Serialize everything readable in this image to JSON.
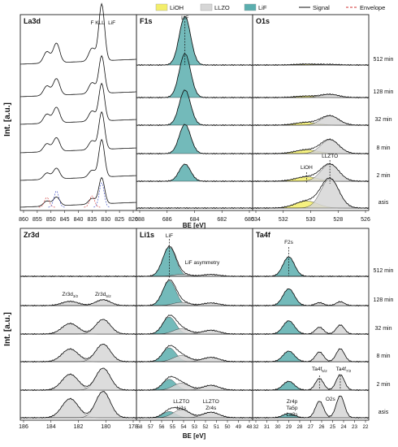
{
  "legend": [
    {
      "label": "LiOH",
      "kind": "fill",
      "color": "#f3ee6a"
    },
    {
      "label": "LLZO",
      "kind": "fill",
      "color": "#d6d6d6"
    },
    {
      "label": "LiF",
      "kind": "fill",
      "color": "#5aaeae"
    },
    {
      "label": "Signal",
      "kind": "line",
      "color": "#111111"
    },
    {
      "label": "Envelope",
      "kind": "dashed",
      "color": "#d03030"
    }
  ],
  "y_label": "Int. [a.u.]",
  "x_label": "BE [eV]",
  "conditions": [
    "512 min",
    "128 min",
    "32 min",
    "8 min",
    "2 min",
    "asis"
  ],
  "colors": {
    "LiOH": "#f3ee6a",
    "LLZO": "#d6d6d6",
    "LiF": "#5aaeae",
    "signal": "#111111",
    "envelope": "#d03030"
  },
  "chart_data": [
    {
      "type": "line",
      "title": "La3d",
      "x_range": [
        860,
        820
      ],
      "x_ticks": [
        "860",
        "855",
        "850",
        "845",
        "840",
        "835",
        "830",
        "825",
        "820"
      ],
      "peaks_eV": [
        851.5,
        848,
        835,
        831.5
      ],
      "annotations": [
        {
          "text": "F KLL",
          "x": 833
        },
        {
          "text": "LiF",
          "x": 829
        }
      ]
    },
    {
      "type": "area",
      "title": "F1s",
      "x_range": [
        688,
        680
      ],
      "x_ticks": [
        "688",
        "686",
        "684",
        "682",
        "680"
      ],
      "component": "LiF",
      "peak_eV": 684.7,
      "relative_intensity": {
        "512 min": 1.0,
        "128 min": 0.9,
        "32 min": 0.72,
        "8 min": 0.6,
        "2 min": 0.35,
        "asis": 0.0
      },
      "annotations": [
        {
          "text": "LiF",
          "x": 684.8
        }
      ]
    },
    {
      "type": "area",
      "title": "O1s",
      "x_range": [
        534,
        526
      ],
      "x_ticks": [
        "534",
        "532",
        "530",
        "528",
        "526"
      ],
      "components": [
        {
          "name": "LLZTO",
          "peak_eV": 528.6
        },
        {
          "name": "LiOH",
          "peak_eV": 530.3
        }
      ],
      "relative_intensity": {
        "512 min": 0.02,
        "128 min": 0.1,
        "32 min": 0.3,
        "8 min": 0.45,
        "2 min": 0.55,
        "asis": 0.95
      },
      "annotations": [
        {
          "text": "LiOH",
          "x": 530.3
        },
        {
          "text": "LLZTO",
          "x": 528.6
        }
      ]
    },
    {
      "type": "area",
      "title": "Zr3d",
      "x_range": [
        186,
        178
      ],
      "x_ticks": [
        "186",
        "184",
        "182",
        "180",
        "178"
      ],
      "components": [
        {
          "name": "Zr3d5/2",
          "peak_eV": 180.2
        },
        {
          "name": "Zr3d3/2",
          "peak_eV": 182.6
        }
      ],
      "relative_intensity": {
        "512 min": 0.0,
        "128 min": 0.2,
        "32 min": 0.5,
        "8 min": 0.6,
        "2 min": 0.75,
        "asis": 0.9
      },
      "annotations": [
        {
          "text": "Zr3d",
          "sub": "3/2",
          "x": 182.6
        },
        {
          "text": "Zr3d",
          "sub": "5/2",
          "x": 180.2
        }
      ]
    },
    {
      "type": "area",
      "title": "Li1s",
      "x_range": [
        58,
        48
      ],
      "x_ticks": [
        "58",
        "57",
        "56",
        "55",
        "54",
        "53",
        "52",
        "51",
        "50",
        "49",
        "48"
      ],
      "components": [
        {
          "name": "LiF",
          "peak_eV": 55.3
        },
        {
          "name": "LLZTO Li1s",
          "peak_eV": 54.2
        },
        {
          "name": "LLZTO Zr4s",
          "peak_eV": 51.5
        }
      ],
      "relative_intensity": {
        "512 min": 0.95,
        "128 min": 0.8,
        "32 min": 0.55,
        "8 min": 0.45,
        "2 min": 0.35,
        "asis": 0.2
      },
      "annotations": [
        {
          "text": "LiF",
          "x": 55.3
        },
        {
          "text": "LiF asymmetry",
          "x": 53.3
        },
        {
          "text": "LLZTO",
          "x": 54.2
        },
        {
          "text": "Li1s",
          "x": 54.2
        },
        {
          "text": "LLZTO",
          "x": 51.5
        },
        {
          "text": "Zr4s",
          "x": 51.5
        }
      ]
    },
    {
      "type": "area",
      "title": "Ta4f",
      "x_range": [
        32,
        22
      ],
      "x_ticks": [
        "32",
        "31",
        "30",
        "29",
        "28",
        "27",
        "26",
        "25",
        "24",
        "23",
        "22"
      ],
      "components": [
        {
          "name": "F2s",
          "peak_eV": 29
        },
        {
          "name": "Ta4f5/2",
          "peak_eV": 26.2
        },
        {
          "name": "Ta4f7/2",
          "peak_eV": 24.3
        },
        {
          "name": "O2s",
          "peak_eV": 25.2
        }
      ],
      "relative_intensity": {
        "512 min": 0.0,
        "128 min": 0.15,
        "32 min": 0.35,
        "8 min": 0.5,
        "2 min": 0.6,
        "asis": 0.85
      },
      "annotations": [
        {
          "text": "F2s",
          "x": 29
        },
        {
          "text": "Ta4f",
          "sub": "5/2",
          "x": 26.2
        },
        {
          "text": "Ta4f",
          "sub": "7/2",
          "x": 24.3
        },
        {
          "text": "Zr4p",
          "x": 27.2
        },
        {
          "text": "Ta5p",
          "x": 27.2
        },
        {
          "text": "La2s",
          "x": 27.2
        },
        {
          "text": "O2s",
          "x": 25.2
        }
      ]
    }
  ]
}
